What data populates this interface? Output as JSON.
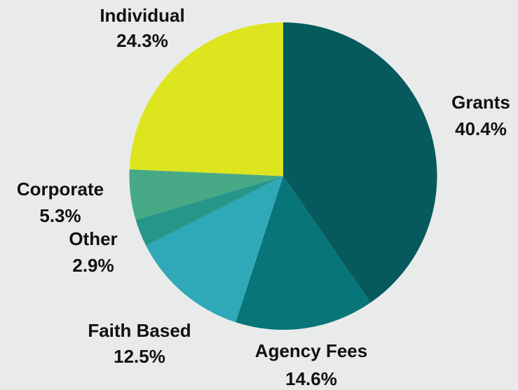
{
  "chart_data": {
    "type": "pie",
    "categories": [
      "Grants",
      "Agency Fees",
      "Faith Based",
      "Other",
      "Corporate",
      "Individual"
    ],
    "values": [
      40.4,
      14.6,
      12.5,
      2.9,
      5.3,
      24.3
    ],
    "value_labels": [
      "40.4%",
      "14.6%",
      "12.5%",
      "2.9%",
      "5.3%",
      "24.3%"
    ],
    "colors": [
      "#065a5e",
      "#087578",
      "#2fa9b8",
      "#27968a",
      "#47a985",
      "#dde51f"
    ]
  }
}
